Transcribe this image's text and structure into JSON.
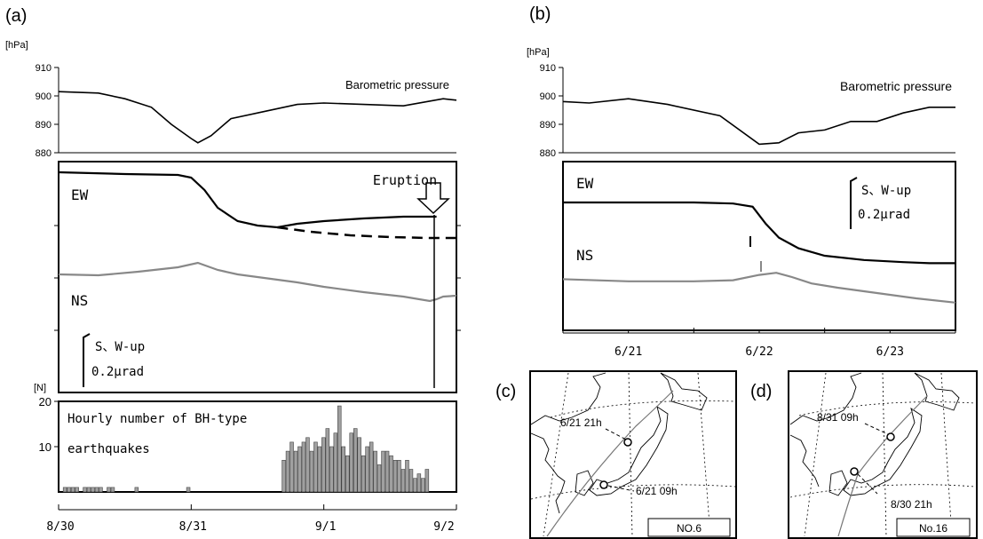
{
  "panel_labels": {
    "a": "(a)",
    "b": "(b)",
    "c": "(c)",
    "d": "(d)"
  },
  "chart_data": [
    {
      "id": "a-pressure",
      "type": "line",
      "unit": "[hPa]",
      "title": "Barometric pressure",
      "ylim": [
        880,
        910
      ],
      "yticks": [
        "910",
        "900",
        "890",
        "880"
      ],
      "xlim": [
        0,
        3
      ],
      "series": [
        {
          "x": [
            0,
            0.3,
            0.5,
            0.7,
            0.85,
            1.0,
            1.05,
            1.15,
            1.3,
            1.5,
            1.8,
            2.0,
            2.3,
            2.6,
            2.9,
            3.0
          ],
          "values": [
            901.5,
            901,
            899,
            896,
            890,
            885,
            883.5,
            886,
            892,
            894,
            897,
            897.5,
            897,
            896.5,
            899,
            898.5
          ]
        }
      ]
    },
    {
      "id": "a-tilt",
      "type": "line",
      "annotations": {
        "eruption": "Eruption",
        "ew": "EW",
        "ns": "NS",
        "scale_dir": "S、W-up",
        "scale_val": "0.2μrad"
      },
      "series": [
        {
          "name": "EW",
          "color": "#000000",
          "x": [
            0,
            0.5,
            0.9,
            1.0,
            1.1,
            1.2,
            1.35,
            1.5,
            1.65,
            1.8,
            2.0,
            2.3,
            2.6,
            2.85
          ],
          "values": [
            0,
            -2,
            -3,
            -6,
            -20,
            -40,
            -55,
            -60,
            -62,
            -58,
            -55,
            -52,
            -50,
            -50
          ]
        },
        {
          "name": "EW-extrapolated",
          "color": "#000000",
          "dashed": true,
          "x": [
            1.65,
            1.9,
            2.2,
            2.5,
            2.8,
            3.0
          ],
          "values": [
            -62,
            -67,
            -71,
            -73,
            -74,
            -74
          ]
        },
        {
          "name": "NS",
          "color": "#888888",
          "x": [
            0,
            0.3,
            0.6,
            0.9,
            1.05,
            1.2,
            1.35,
            1.5,
            1.8,
            2.0,
            2.3,
            2.6,
            2.8,
            2.85,
            2.9,
            3.0
          ],
          "values": [
            -115,
            -116,
            -112,
            -107,
            -102,
            -110,
            -115,
            -118,
            -124,
            -129,
            -135,
            -140,
            -145,
            -143,
            -140,
            -139
          ]
        }
      ]
    },
    {
      "id": "a-earthquakes",
      "type": "bar",
      "unit": "[N]",
      "title_line1": "Hourly number of BH-type",
      "title_line2": "earthquakes",
      "ylim": [
        0,
        20
      ],
      "yticks": [
        "20",
        "10"
      ],
      "xticks": [
        "8/30",
        "8/31",
        "9/1",
        "9/2"
      ],
      "bars": [
        {
          "x": 0.05,
          "v": 1
        },
        {
          "x": 0.08,
          "v": 1
        },
        {
          "x": 0.11,
          "v": 1
        },
        {
          "x": 0.14,
          "v": 1
        },
        {
          "x": 0.2,
          "v": 1
        },
        {
          "x": 0.23,
          "v": 1
        },
        {
          "x": 0.26,
          "v": 1
        },
        {
          "x": 0.29,
          "v": 1
        },
        {
          "x": 0.32,
          "v": 1
        },
        {
          "x": 0.38,
          "v": 1
        },
        {
          "x": 0.41,
          "v": 1
        },
        {
          "x": 0.59,
          "v": 1
        },
        {
          "x": 0.98,
          "v": 1
        },
        {
          "x": 1.7,
          "v": 7
        },
        {
          "x": 1.73,
          "v": 9
        },
        {
          "x": 1.76,
          "v": 11
        },
        {
          "x": 1.79,
          "v": 9
        },
        {
          "x": 1.82,
          "v": 10
        },
        {
          "x": 1.85,
          "v": 11
        },
        {
          "x": 1.88,
          "v": 12
        },
        {
          "x": 1.91,
          "v": 9
        },
        {
          "x": 1.94,
          "v": 11
        },
        {
          "x": 1.97,
          "v": 10
        },
        {
          "x": 2.0,
          "v": 12
        },
        {
          "x": 2.03,
          "v": 14
        },
        {
          "x": 2.06,
          "v": 10
        },
        {
          "x": 2.09,
          "v": 13
        },
        {
          "x": 2.12,
          "v": 19
        },
        {
          "x": 2.15,
          "v": 10
        },
        {
          "x": 2.18,
          "v": 8
        },
        {
          "x": 2.21,
          "v": 13
        },
        {
          "x": 2.24,
          "v": 14
        },
        {
          "x": 2.27,
          "v": 12
        },
        {
          "x": 2.3,
          "v": 8
        },
        {
          "x": 2.33,
          "v": 10
        },
        {
          "x": 2.36,
          "v": 11
        },
        {
          "x": 2.39,
          "v": 9
        },
        {
          "x": 2.42,
          "v": 6
        },
        {
          "x": 2.45,
          "v": 9
        },
        {
          "x": 2.48,
          "v": 9
        },
        {
          "x": 2.51,
          "v": 8
        },
        {
          "x": 2.54,
          "v": 7
        },
        {
          "x": 2.57,
          "v": 7
        },
        {
          "x": 2.6,
          "v": 5
        },
        {
          "x": 2.63,
          "v": 7
        },
        {
          "x": 2.66,
          "v": 5
        },
        {
          "x": 2.69,
          "v": 3
        },
        {
          "x": 2.72,
          "v": 4
        },
        {
          "x": 2.75,
          "v": 3
        },
        {
          "x": 2.78,
          "v": 5
        }
      ]
    },
    {
      "id": "b-pressure",
      "type": "line",
      "unit": "[hPa]",
      "title": "Barometric pressure",
      "ylim": [
        880,
        910
      ],
      "yticks": [
        "910",
        "900",
        "890",
        "880"
      ],
      "series": [
        {
          "x": [
            0,
            0.2,
            0.5,
            0.8,
            1.2,
            1.5,
            1.65,
            1.8,
            2.0,
            2.2,
            2.4,
            2.6,
            2.8,
            3.0
          ],
          "values": [
            898,
            897.5,
            899,
            897,
            893,
            883,
            883.5,
            887,
            888,
            891,
            891,
            894,
            896,
            896
          ]
        }
      ]
    },
    {
      "id": "b-tilt",
      "type": "line",
      "annotations": {
        "ew": "EW",
        "ns": "NS",
        "scale_dir": "S、W-up",
        "scale_val": "0.2μrad"
      },
      "xticks": [
        "6/21",
        "6/22",
        "6/23"
      ],
      "series": [
        {
          "name": "EW",
          "color": "#000000",
          "x": [
            0,
            0.5,
            1.0,
            1.3,
            1.45,
            1.55,
            1.65,
            1.8,
            2.0,
            2.3,
            2.6,
            2.8,
            3.0
          ],
          "values": [
            0,
            0,
            0,
            -1,
            -4,
            -20,
            -33,
            -43,
            -50,
            -54,
            -56,
            -57,
            -57
          ]
        },
        {
          "name": "NS",
          "color": "#888888",
          "x": [
            0,
            0.5,
            1.0,
            1.3,
            1.5,
            1.63,
            1.75,
            1.9,
            2.1,
            2.4,
            2.7,
            3.0
          ],
          "values": [
            -72,
            -74,
            -74,
            -73,
            -68,
            -66,
            -70,
            -76,
            -80,
            -85,
            -90,
            -94
          ]
        }
      ]
    }
  ],
  "map_c": {
    "label_a": "6/21 21h",
    "label_b": "6/21 09h",
    "box": "NO.6"
  },
  "map_d": {
    "label_a": "8/31 09h",
    "label_b": "8/30 21h",
    "box": "No.16"
  }
}
